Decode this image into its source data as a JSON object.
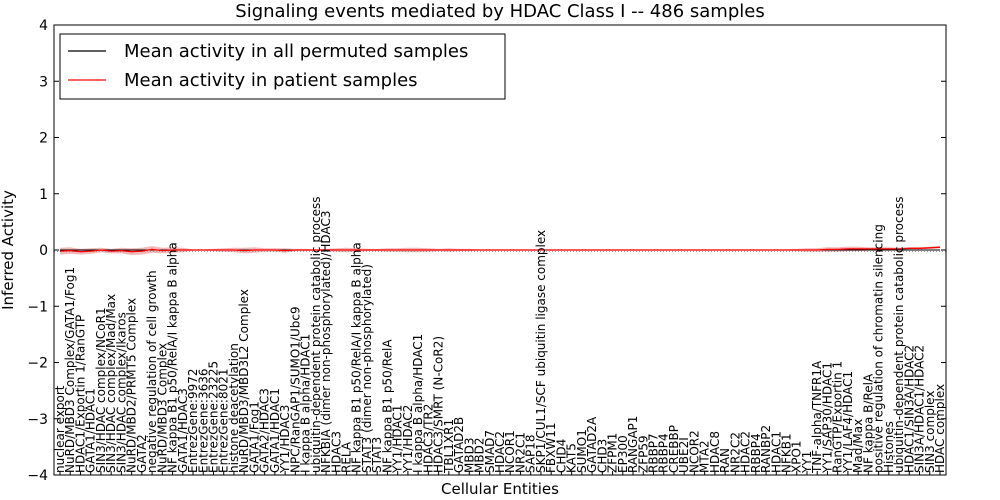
{
  "chart_data": {
    "type": "line",
    "title": "Signaling events mediated by HDAC Class I -- 486 samples",
    "xlabel": "Cellular Entities",
    "ylabel": "Inferred Activity",
    "ylim": [
      -4,
      4
    ],
    "yticks": [
      -4,
      -3,
      -2,
      -1,
      0,
      1,
      2,
      3,
      4
    ],
    "legend": {
      "position": "top-left",
      "entries": [
        {
          "label": "Mean activity in all permuted samples",
          "color": "#000000"
        },
        {
          "label": "Mean activity in patient samples",
          "color": "#ff0000"
        }
      ]
    },
    "categories": [
      "nuclear export",
      "NuRD/MBD3 Complex/GATA1/Fog1",
      "HDAC1/Exportin 1/RanGTP",
      "GATA1/HDAC1",
      "SIN3/HDAC complex/NCoR1",
      "SIN3/HDAC complex/Mad/Max",
      "SIN3/HDAC complex/Ikaros",
      "NuRD/MBD2/PRMT5 Complex",
      "GATA2",
      "negative regulation of cell growth",
      "NuRD/MBD3 Complex",
      "NF kappa B1 p50/RelA/I kappa B alpha",
      "GATA1/HDAC3",
      "EntrezGene:9972",
      "EntrezGene:3636",
      "EntrezGene:23225",
      "EntrezGene:8021",
      "histone deacetylation",
      "NuRD/MBD3/MBD3L2 Complex",
      "GATA1/Fog1",
      "GATA2/HDAC3",
      "GATA1/HDAC1",
      "YY1/HDAC3",
      "NPC/RanGAP1/SUMO1/Ubc9",
      "I kappa B alpha/HDAC1",
      "ubiquitin-dependent protein catabolic process",
      "NFKBIA (dimer non-phosphorylated)/HDAC3",
      "HDAC3",
      "RELA",
      "NF kappa B1 p50/RelA/I kappa B alpha",
      "STAT3 (dimer non-phosphorylated)",
      "STAT3",
      "NF kappa B1 p50/RelA",
      "YY1/HDAC1",
      "YY1/HDAC2",
      "I kappa B alpha/HDAC1",
      "HDAC3/TR2",
      "HDAC3/SMRT (N-CoR2)",
      "TBL1XR1",
      "GATAD2B",
      "MBD3",
      "MBD2",
      "SMAD7",
      "HDAC2",
      "NCOR1",
      "NR2C1",
      "SAP18",
      "SKP1/CUL1/SCF ubiquitin ligase complex",
      "FBXW11",
      "CHD4",
      "KAT5",
      "SUMO1",
      "GATAD2A",
      "CHD3",
      "ZFPM1",
      "EP300",
      "RANGAP1",
      "ZFP59",
      "RBBP7",
      "RBBP4",
      "CREBBP",
      "UBE2I",
      "NCOR2",
      "MTA2",
      "HDAC8",
      "RAN",
      "NR2C2",
      "HDAC2",
      "RBBP4",
      "RANBP2",
      "HDAC1",
      "NFKB1",
      "XPO1",
      "YY1",
      "TNF-alpha/TNFR1A",
      "YY1/SAP30/HDAC1",
      "RanGTP/Exportin 1",
      "YY1/LAF4/HDAC1",
      "Mad/Max",
      "NF kappa B/RelA",
      "positive regulation of chromatin silencing",
      "Histones",
      "ubiquitin-dependent protein catabolic process",
      "HDAC1/SIN3A/HDAC2",
      "SIN3A/HDAC1/HDAC2",
      "SIN3 complex",
      "HDAC complex"
    ],
    "series": [
      {
        "name": "Mean activity in patient samples",
        "color": "#ff0000",
        "values": [
          -0.02,
          -0.01,
          -0.03,
          -0.02,
          0.0,
          -0.02,
          -0.01,
          -0.03,
          -0.02,
          0.01,
          -0.01,
          0.0,
          0.0,
          0.0,
          0.0,
          0.0,
          0.0,
          0.0,
          -0.01,
          0.0,
          0.0,
          0.0,
          -0.01,
          0.0,
          0.0,
          0.0,
          0.0,
          0.0,
          0.0,
          0.0,
          0.0,
          0.0,
          0.0,
          0.0,
          0.0,
          0.0,
          0.0,
          0.0,
          0.0,
          0.0,
          0.0,
          0.0,
          0.0,
          0.0,
          0.0,
          0.0,
          0.0,
          0.0,
          0.0,
          0.0,
          0.0,
          0.0,
          0.0,
          0.0,
          0.0,
          0.0,
          0.0,
          0.0,
          0.0,
          0.0,
          0.0,
          0.0,
          0.0,
          0.0,
          0.0,
          0.0,
          0.0,
          0.0,
          0.0,
          0.0,
          0.0,
          0.0,
          0.0,
          0.0,
          0.0,
          0.01,
          0.01,
          0.02,
          0.02,
          0.02,
          0.02,
          0.02,
          0.02,
          0.03,
          0.03,
          0.04,
          0.05
        ]
      },
      {
        "name": "Mean activity in all permuted samples",
        "color": "#000000",
        "values": [
          0,
          0,
          0,
          0,
          0,
          0,
          0,
          0,
          0,
          0,
          0,
          0,
          0,
          0,
          0,
          0,
          0,
          0,
          0,
          0,
          0,
          0,
          0,
          0,
          0,
          0,
          0,
          0,
          0,
          0,
          0,
          0,
          0,
          0,
          0,
          0,
          0,
          0,
          0,
          0,
          0,
          0,
          0,
          0,
          0,
          0,
          0,
          0,
          0,
          0,
          0,
          0,
          0,
          0,
          0,
          0,
          0,
          0,
          0,
          0,
          0,
          0,
          0,
          0,
          0,
          0,
          0,
          0,
          0,
          0,
          0,
          0,
          0,
          0,
          0,
          0,
          0,
          0,
          0,
          0,
          0,
          0,
          0,
          0,
          0,
          0,
          0
        ]
      }
    ],
    "band_halfwidth": [
      0.06,
      0.06,
      0.05,
      0.05,
      0.04,
      0.04,
      0.05,
      0.06,
      0.06,
      0.06,
      0.05,
      0.05,
      0.04,
      0.01,
      0.01,
      0.02,
      0.03,
      0.04,
      0.05,
      0.05,
      0.03,
      0.03,
      0.04,
      0.02,
      0.02,
      0.01,
      0.02,
      0.03,
      0.04,
      0.03,
      0.02,
      0.02,
      0.03,
      0.03,
      0.04,
      0.04,
      0.03,
      0.02,
      0.03,
      0.02,
      0.02,
      0.01,
      0.01,
      0.01,
      0.01,
      0.01,
      0.01,
      0.01,
      0.01,
      0.01,
      0.01,
      0.01,
      0.01,
      0.01,
      0.01,
      0.01,
      0.01,
      0.01,
      0.01,
      0.01,
      0.01,
      0.01,
      0.01,
      0.01,
      0.01,
      0.01,
      0.01,
      0.01,
      0.01,
      0.01,
      0.01,
      0.01,
      0.02,
      0.03,
      0.03,
      0.04,
      0.04,
      0.04,
      0.04,
      0.03,
      0.03,
      0.03,
      0.02,
      0.02,
      0.02,
      0.02,
      0.02
    ]
  }
}
